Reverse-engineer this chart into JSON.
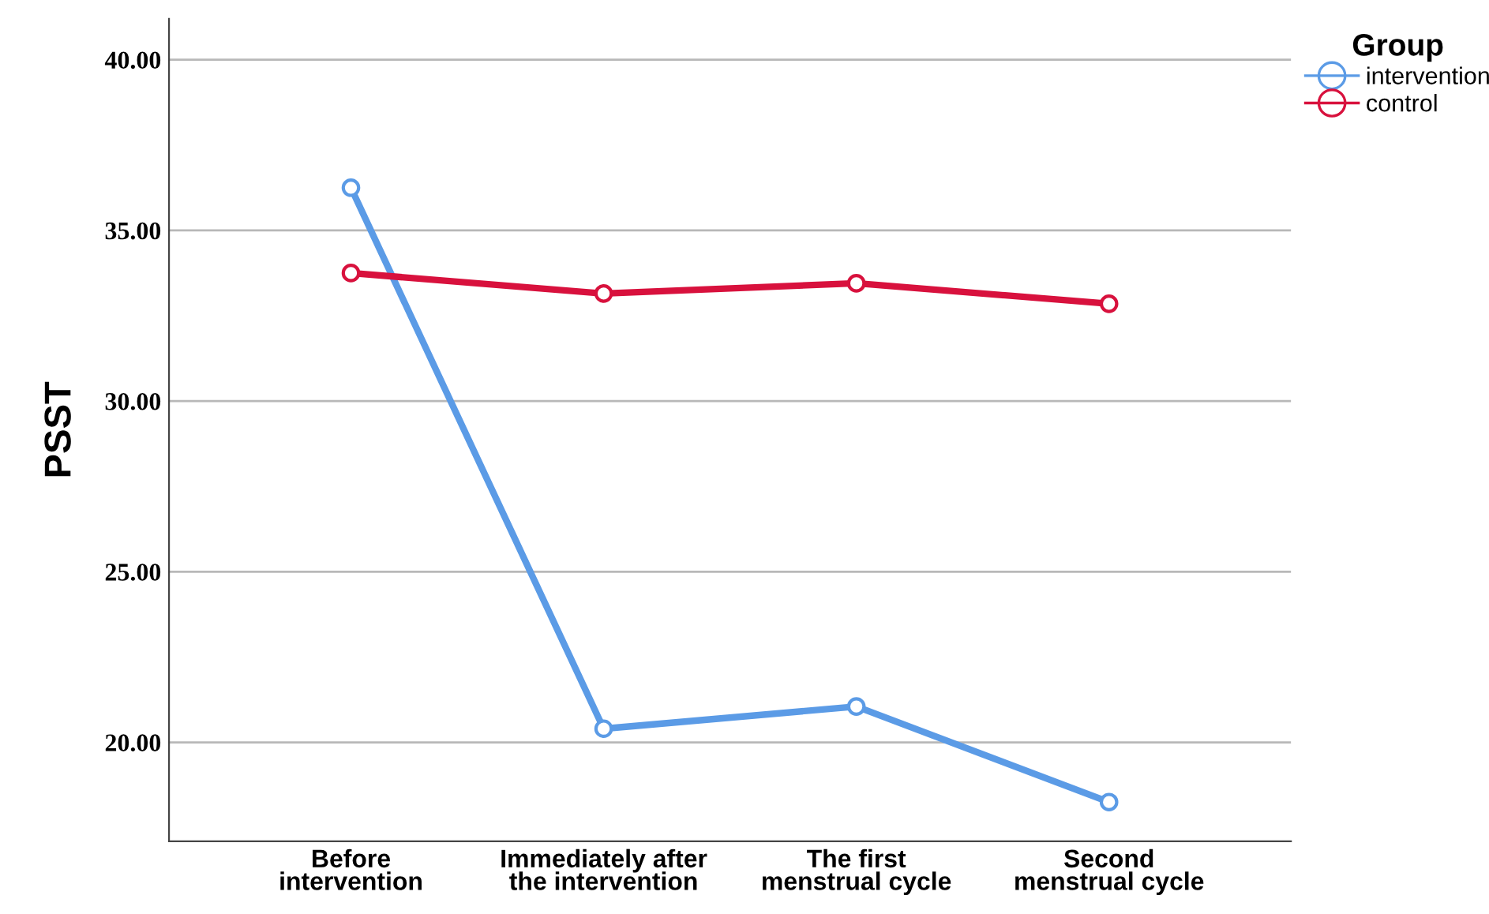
{
  "chart_data": {
    "type": "line",
    "ylabel": "PSST",
    "categories": [
      "Before\nintervention",
      "Immediately after\nthe intervention",
      "The first\nmenstrual cycle",
      "Second\nmenstrual cycle"
    ],
    "series": [
      {
        "name": "intervention",
        "color": "#5b9be6",
        "values": [
          36.25,
          20.4,
          21.05,
          18.25
        ]
      },
      {
        "name": "control",
        "color": "#d8113d",
        "values": [
          33.75,
          33.15,
          33.45,
          32.85
        ]
      }
    ],
    "ylim": [
      17.1,
      41.2
    ],
    "yticks": [
      {
        "value": 20,
        "label": "20.00"
      },
      {
        "value": 25,
        "label": "25.00"
      },
      {
        "value": 30,
        "label": "30.00"
      },
      {
        "value": 35,
        "label": "35.00"
      },
      {
        "value": 40,
        "label": "40.00"
      }
    ],
    "legend_title": "Group",
    "legend": "top right",
    "grid": "y",
    "marker": "circle",
    "line_style": "solid"
  }
}
